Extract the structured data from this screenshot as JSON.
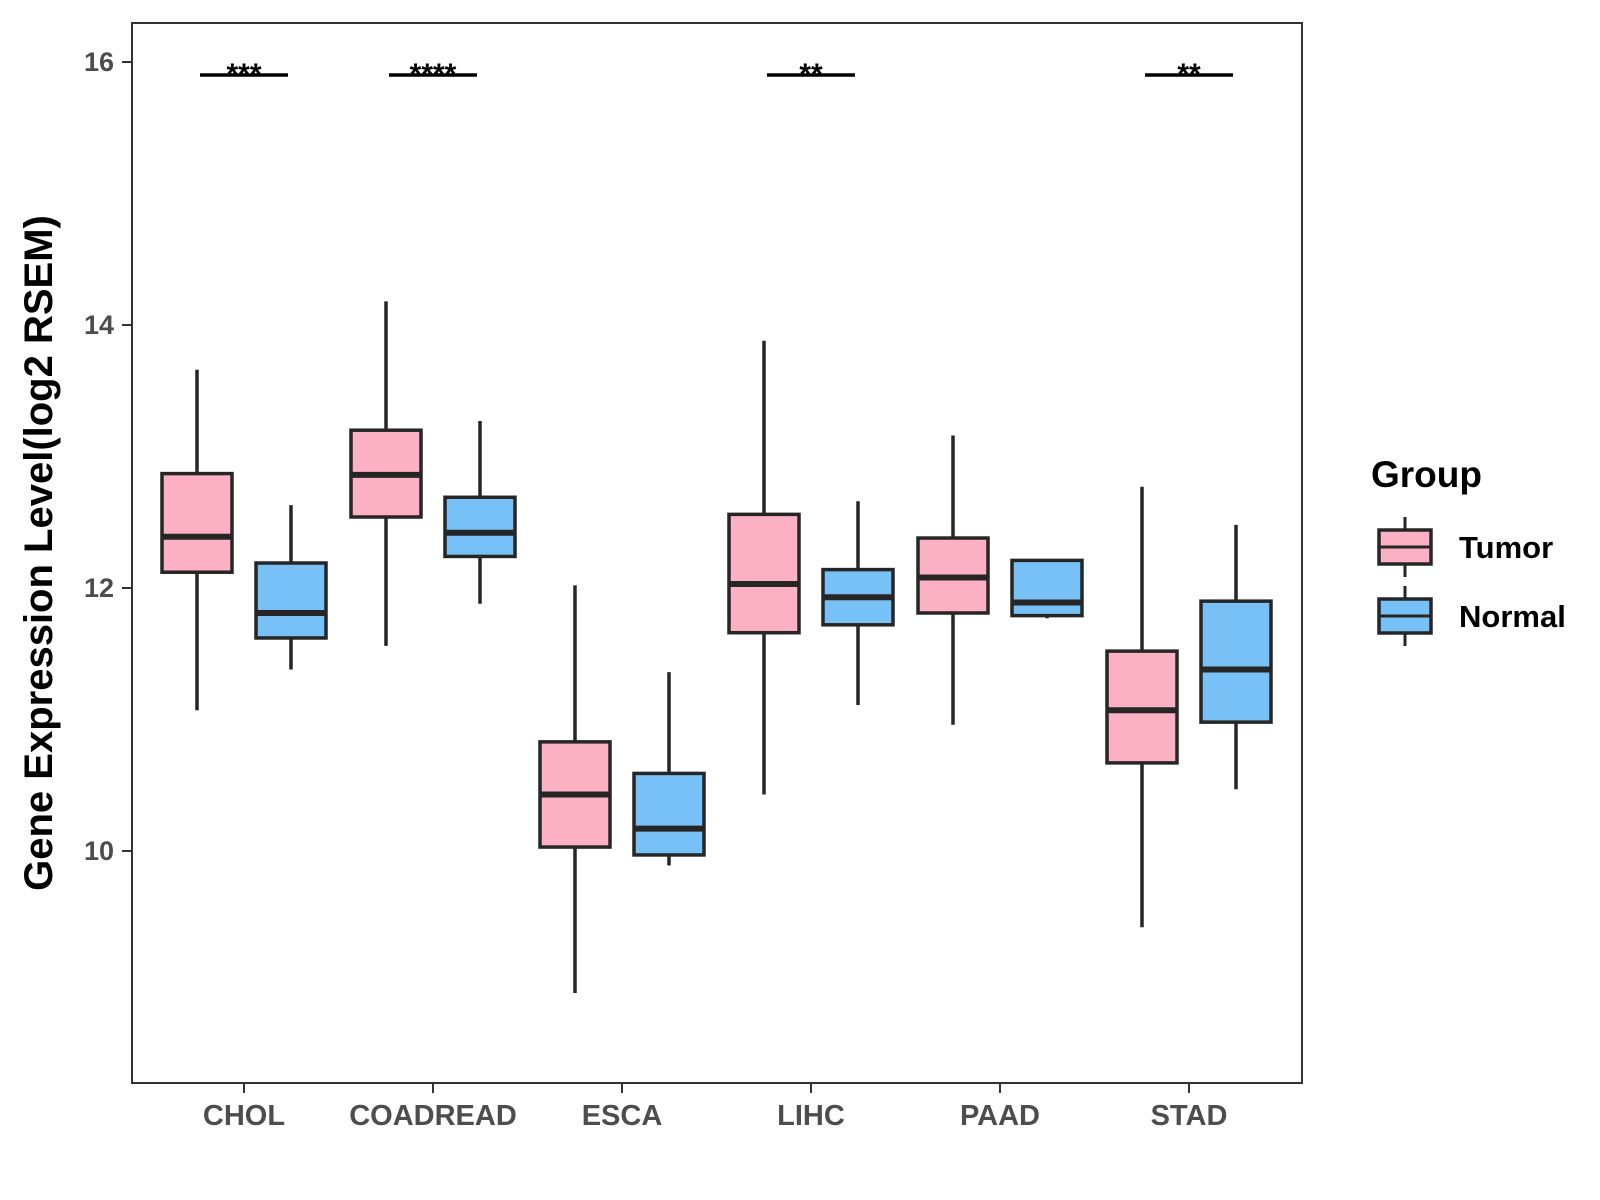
{
  "chart_data": {
    "type": "boxplot",
    "ylabel": "Gene Expression Level(log2 RSEM)",
    "xlabel": "",
    "ylim": [
      8.2,
      16.3
    ],
    "yticks": [
      "10",
      "12",
      "14",
      "16"
    ],
    "categories": [
      "CHOL",
      "COADREAD",
      "ESCA",
      "LIHC",
      "PAAD",
      "STAD"
    ],
    "legend": {
      "title": "Group",
      "position": "right"
    },
    "grid": false,
    "series": [
      {
        "name": "Tumor",
        "color": "#FBB0C3",
        "boxes": [
          {
            "min": 11.07,
            "q1": 12.12,
            "median": 12.39,
            "q3": 12.87,
            "max": 13.66
          },
          {
            "min": 11.56,
            "q1": 12.54,
            "median": 12.86,
            "q3": 13.2,
            "max": 14.18
          },
          {
            "min": 8.92,
            "q1": 10.03,
            "median": 10.43,
            "q3": 10.83,
            "max": 12.02
          },
          {
            "min": 10.43,
            "q1": 11.66,
            "median": 12.03,
            "q3": 12.56,
            "max": 13.88
          },
          {
            "min": 10.96,
            "q1": 11.81,
            "median": 12.08,
            "q3": 12.38,
            "max": 13.16
          },
          {
            "min": 9.42,
            "q1": 10.67,
            "median": 11.07,
            "q3": 11.52,
            "max": 12.77
          }
        ]
      },
      {
        "name": "Normal",
        "color": "#77C1F7",
        "boxes": [
          {
            "min": 11.38,
            "q1": 11.62,
            "median": 11.81,
            "q3": 12.19,
            "max": 12.63
          },
          {
            "min": 11.88,
            "q1": 12.24,
            "median": 12.42,
            "q3": 12.69,
            "max": 13.27
          },
          {
            "min": 9.89,
            "q1": 9.97,
            "median": 10.17,
            "q3": 10.59,
            "max": 11.36
          },
          {
            "min": 11.11,
            "q1": 11.72,
            "median": 11.93,
            "q3": 12.14,
            "max": 12.66
          },
          {
            "min": 11.77,
            "q1": 11.79,
            "median": 11.89,
            "q3": 12.21,
            "max": 12.21
          },
          {
            "min": 10.47,
            "q1": 10.98,
            "median": 11.38,
            "q3": 11.9,
            "max": 12.48
          }
        ]
      }
    ],
    "annotations": [
      {
        "category": "CHOL",
        "text": "***"
      },
      {
        "category": "COADREAD",
        "text": "****"
      },
      {
        "category": "LIHC",
        "text": "**"
      },
      {
        "category": "STAD",
        "text": "**"
      }
    ]
  }
}
